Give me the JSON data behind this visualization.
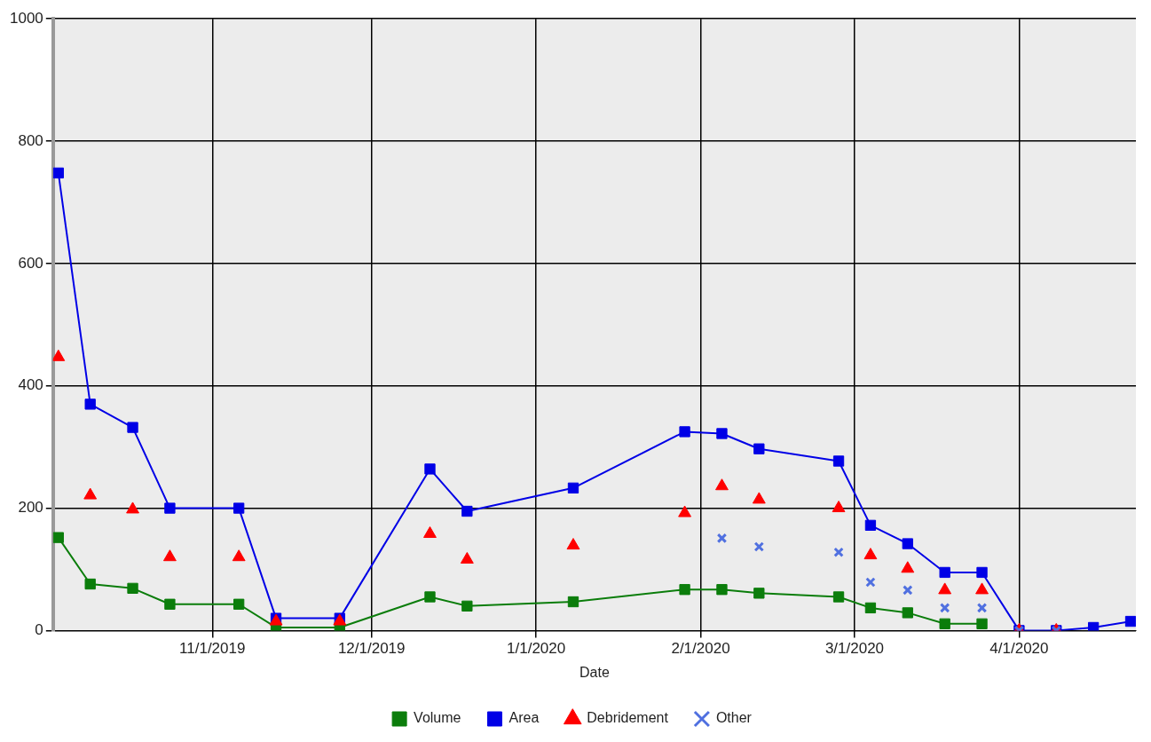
{
  "chart_data": {
    "type": "line",
    "xlabel": "Date",
    "x": [
      "2019-10-03",
      "2019-10-09",
      "2019-10-17",
      "2019-10-24",
      "2019-11-06",
      "2019-11-13",
      "2019-11-25",
      "2019-12-12",
      "2019-12-19",
      "2020-01-08",
      "2020-01-29",
      "2020-02-05",
      "2020-02-12",
      "2020-02-27",
      "2020-03-04",
      "2020-03-11",
      "2020-03-18",
      "2020-03-25",
      "2020-04-01",
      "2020-04-08",
      "2020-04-15",
      "2020-04-22"
    ],
    "series": [
      {
        "name": "Volume",
        "marker": "square",
        "color": "#0b7d0b",
        "values": [
          152,
          76,
          69,
          43,
          43,
          5,
          5,
          55,
          40,
          47,
          67,
          67,
          61,
          55,
          37,
          29,
          11,
          11,
          null,
          null,
          null,
          null
        ]
      },
      {
        "name": "Area",
        "marker": "square",
        "color": "#0000e6",
        "values": [
          748,
          370,
          332,
          200,
          200,
          20,
          20,
          264,
          195,
          233,
          325,
          322,
          297,
          277,
          172,
          142,
          95,
          95,
          0,
          0,
          5,
          15
        ]
      },
      {
        "name": "Debridement",
        "type": "scatter",
        "marker": "triangle",
        "color": "#ff0000",
        "values": [
          447,
          221,
          198,
          120,
          120,
          15,
          15,
          158,
          116,
          139,
          192,
          236,
          214,
          200,
          123,
          101,
          66,
          66,
          0,
          0,
          null,
          null
        ]
      },
      {
        "name": "Other",
        "type": "scatter",
        "marker": "cross",
        "color": "#5070e0",
        "values": [
          null,
          null,
          null,
          null,
          null,
          null,
          null,
          null,
          null,
          null,
          null,
          151,
          137,
          128,
          79,
          66,
          37,
          37,
          0,
          0,
          null,
          null
        ]
      }
    ],
    "xlim": [
      "2019-10-02",
      "2020-04-23"
    ],
    "xticks": [
      {
        "value": "2019-11-01",
        "label": "11/1/2019"
      },
      {
        "value": "2019-12-01",
        "label": "12/1/2019"
      },
      {
        "value": "2020-01-01",
        "label": "1/1/2020"
      },
      {
        "value": "2020-02-01",
        "label": "2/1/2020"
      },
      {
        "value": "2020-03-01",
        "label": "3/1/2020"
      },
      {
        "value": "2020-04-01",
        "label": "4/1/2020"
      }
    ],
    "ylim": [
      0,
      1000
    ],
    "yticks": [
      0,
      200,
      400,
      600,
      800,
      1000
    ],
    "grid": true,
    "legend": "bottom"
  }
}
